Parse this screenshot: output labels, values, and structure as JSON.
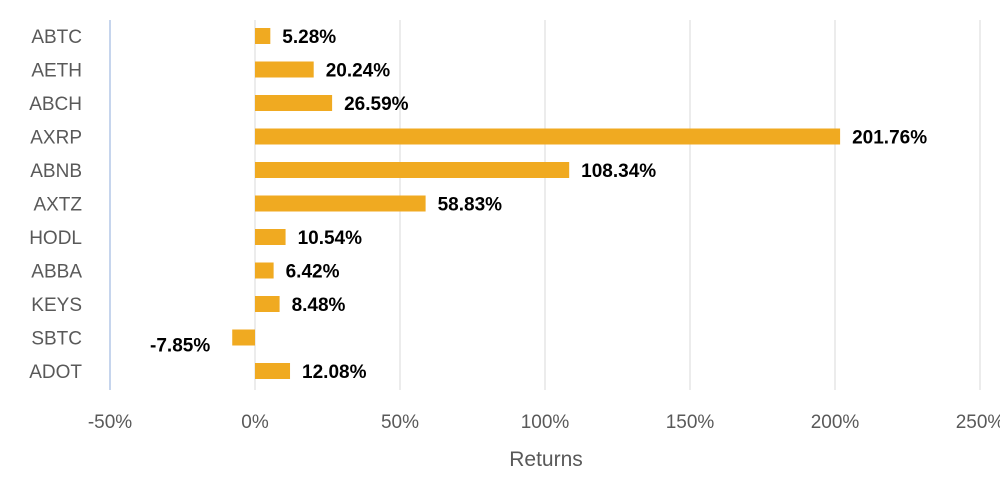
{
  "chart_data": {
    "type": "bar",
    "orientation": "horizontal",
    "title": "",
    "xlabel": "Returns",
    "ylabel": "",
    "xlim": [
      -50,
      250
    ],
    "x_ticks": [
      -50,
      0,
      50,
      100,
      150,
      200,
      250
    ],
    "x_tick_labels": [
      "-50%",
      "0%",
      "50%",
      "100%",
      "150%",
      "200%",
      "250%"
    ],
    "grid": true,
    "legend": "none",
    "bar_color": "#F0AA21",
    "gridline_color": "#D9D9D9",
    "zero_line_color": "#B4C7E7",
    "categories": [
      "ABTC",
      "AETH",
      "ABCH",
      "AXRP",
      "ABNB",
      "AXTZ",
      "HODL",
      "ABBA",
      "KEYS",
      "SBTC",
      "ADOT"
    ],
    "values": [
      5.28,
      20.24,
      26.59,
      201.76,
      108.34,
      58.83,
      10.54,
      6.42,
      8.48,
      -7.85,
      12.08
    ],
    "value_labels": [
      "5.28%",
      "20.24%",
      "26.59%",
      "201.76%",
      "108.34%",
      "58.83%",
      "10.54%",
      "6.42%",
      "8.48%",
      "-7.85%",
      "12.08%"
    ]
  }
}
